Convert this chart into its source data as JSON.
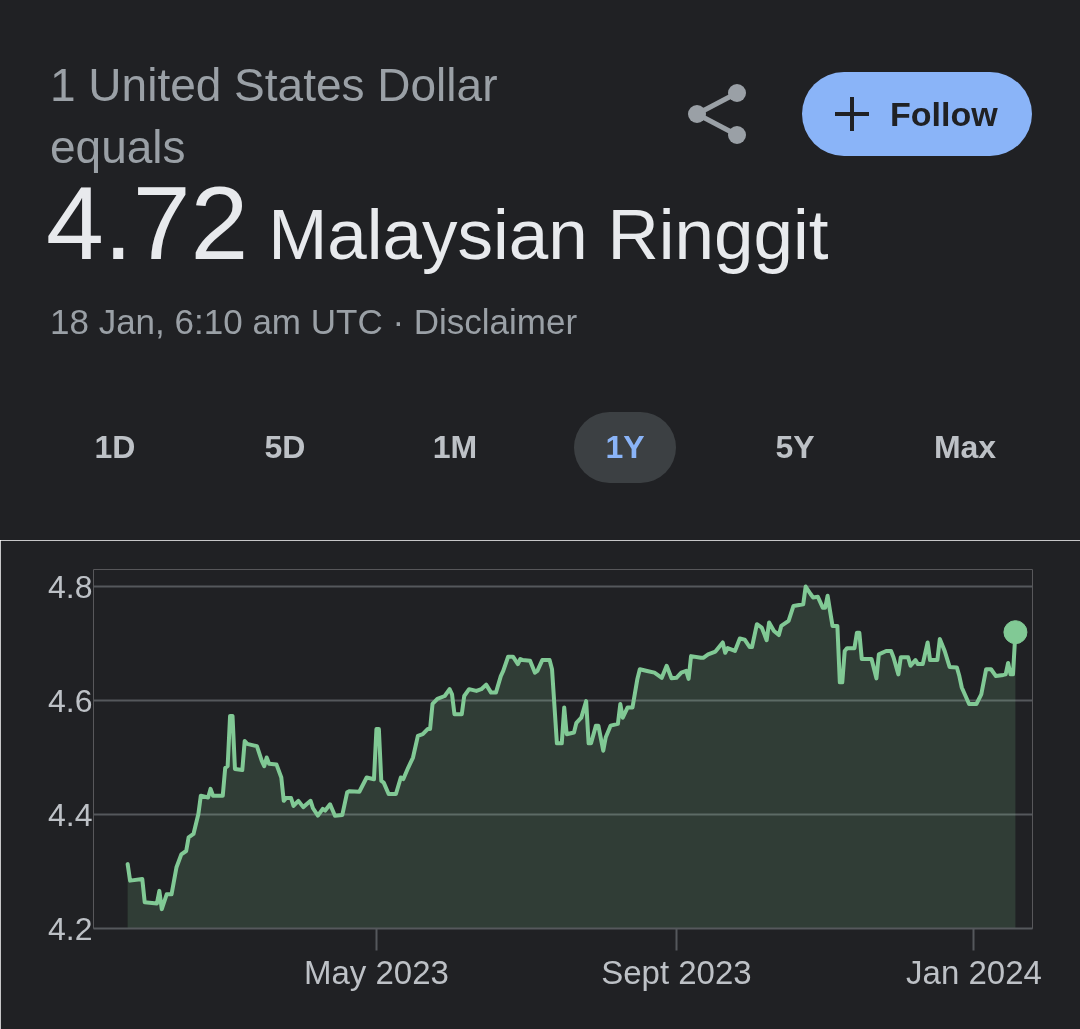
{
  "chart_data": {
    "type": "area",
    "title": "1 United States Dollar equals",
    "subtitle": "4.72 Malaysian Ringgit",
    "annotations": [
      "18 Jan, 6:10 am UTC · Disclaimer",
      "Follow",
      "1D",
      "5D",
      "1M",
      "1Y",
      "5Y",
      "Max"
    ],
    "x": [
      "2023-01-19",
      "2023-01-20",
      "2023-01-25",
      "2023-01-26",
      "2023-01-31",
      "2023-02-01",
      "2023-02-02",
      "2023-02-04",
      "2023-02-06",
      "2023-02-08",
      "2023-02-10",
      "2023-02-12",
      "2023-02-13",
      "2023-02-15",
      "2023-02-17",
      "2023-02-18",
      "2023-02-21",
      "2023-02-22",
      "2023-02-23",
      "2023-02-27",
      "2023-02-28",
      "2023-03-01",
      "2023-03-02",
      "2023-03-03",
      "2023-03-04",
      "2023-03-07",
      "2023-03-08",
      "2023-03-09",
      "2023-03-13",
      "2023-03-15",
      "2023-03-16",
      "2023-03-17",
      "2023-03-18",
      "2023-03-21",
      "2023-03-23",
      "2023-03-24",
      "2023-03-25",
      "2023-03-27",
      "2023-03-28",
      "2023-03-30",
      "2023-04-01",
      "2023-04-04",
      "2023-04-05",
      "2023-04-07",
      "2023-04-09",
      "2023-04-10",
      "2023-04-12",
      "2023-04-14",
      "2023-04-17",
      "2023-04-19",
      "2023-04-20",
      "2023-04-24",
      "2023-04-27",
      "2023-04-30",
      "2023-05-01",
      "2023-05-02",
      "2023-05-03",
      "2023-05-04",
      "2023-05-06",
      "2023-05-09",
      "2023-05-11",
      "2023-05-12",
      "2023-05-14",
      "2023-05-16",
      "2023-05-18",
      "2023-05-20",
      "2023-05-22",
      "2023-05-23",
      "2023-05-24",
      "2023-05-26",
      "2023-05-29",
      "2023-05-31",
      "2023-06-01",
      "2023-06-02",
      "2023-06-05",
      "2023-06-06",
      "2023-06-08",
      "2023-06-11",
      "2023-06-13",
      "2023-06-15",
      "2023-06-17",
      "2023-06-19",
      "2023-06-21",
      "2023-06-22",
      "2023-06-24",
      "2023-06-26",
      "2023-06-28",
      "2023-06-29",
      "2023-06-30",
      "2023-07-03",
      "2023-07-05",
      "2023-07-06",
      "2023-07-08",
      "2023-07-11",
      "2023-07-12",
      "2023-07-14",
      "2023-07-16",
      "2023-07-17",
      "2023-07-18",
      "2023-07-21",
      "2023-07-22",
      "2023-07-24",
      "2023-07-26",
      "2023-07-27",
      "2023-07-28",
      "2023-07-30",
      "2023-07-31",
      "2023-08-02",
      "2023-08-03",
      "2023-08-05",
      "2023-08-08",
      "2023-08-09",
      "2023-08-10",
      "2023-08-12",
      "2023-08-14",
      "2023-08-16",
      "2023-08-17",
      "2023-08-20",
      "2023-08-23",
      "2023-08-26",
      "2023-08-28",
      "2023-08-30",
      "2023-09-01",
      "2023-09-03",
      "2023-09-05",
      "2023-09-06",
      "2023-09-07",
      "2023-09-11",
      "2023-09-12",
      "2023-09-14",
      "2023-09-17",
      "2023-09-20",
      "2023-09-21",
      "2023-09-22",
      "2023-09-25",
      "2023-09-27",
      "2023-09-29",
      "2023-10-01",
      "2023-10-02",
      "2023-10-04",
      "2023-10-06",
      "2023-10-08",
      "2023-10-09",
      "2023-10-11",
      "2023-10-13",
      "2023-10-14",
      "2023-10-17",
      "2023-10-19",
      "2023-10-23",
      "2023-10-24",
      "2023-10-26",
      "2023-10-27",
      "2023-10-29",
      "2023-10-31",
      "2023-11-01",
      "2023-11-02",
      "2023-11-03",
      "2023-11-04",
      "2023-11-06",
      "2023-11-07",
      "2023-11-08",
      "2023-11-09",
      "2023-11-10",
      "2023-11-13",
      "2023-11-14",
      "2023-11-15",
      "2023-11-16",
      "2023-11-20",
      "2023-11-22",
      "2023-11-23",
      "2023-11-26",
      "2023-11-28",
      "2023-11-29",
      "2023-12-01",
      "2023-12-02",
      "2023-12-05",
      "2023-12-06",
      "2023-12-08",
      "2023-12-09",
      "2023-12-11",
      "2023-12-13",
      "2023-12-14",
      "2023-12-17",
      "2023-12-18",
      "2023-12-20",
      "2023-12-22",
      "2023-12-25",
      "2023-12-26",
      "2023-12-27",
      "2023-12-30",
      "2024-01-02",
      "2024-01-04",
      "2024-01-06",
      "2024-01-08",
      "2024-01-10",
      "2024-01-13",
      "2024-01-14",
      "2024-01-15",
      "2024-01-16",
      "2024-01-17",
      "2024-01-18"
    ],
    "series": [
      {
        "color": "#81c995",
        "values": [
          4.313,
          4.284,
          4.287,
          4.246,
          4.244,
          4.266,
          4.234,
          4.26,
          4.26,
          4.307,
          4.33,
          4.336,
          4.36,
          4.366,
          4.401,
          4.433,
          4.43,
          4.445,
          4.433,
          4.433,
          4.482,
          4.485,
          4.573,
          4.573,
          4.48,
          4.478,
          4.529,
          4.524,
          4.52,
          4.494,
          4.485,
          4.5,
          4.489,
          4.488,
          4.465,
          4.424,
          4.429,
          4.429,
          4.415,
          4.424,
          4.413,
          4.424,
          4.411,
          4.398,
          4.41,
          4.407,
          4.418,
          4.398,
          4.399,
          4.439,
          4.441,
          4.44,
          4.465,
          4.462,
          4.55,
          4.55,
          4.459,
          4.456,
          4.436,
          4.436,
          4.465,
          4.462,
          4.482,
          4.5,
          4.538,
          4.541,
          4.55,
          4.55,
          4.594,
          4.603,
          4.608,
          4.62,
          4.611,
          4.576,
          4.576,
          4.608,
          4.62,
          4.617,
          4.62,
          4.628,
          4.614,
          4.614,
          4.643,
          4.652,
          4.677,
          4.677,
          4.664,
          4.673,
          4.671,
          4.67,
          4.649,
          4.652,
          4.671,
          4.671,
          4.655,
          4.525,
          4.525,
          4.588,
          4.541,
          4.544,
          4.561,
          4.57,
          4.599,
          4.525,
          4.525,
          4.556,
          4.556,
          4.512,
          4.535,
          4.556,
          4.559,
          4.594,
          4.57,
          4.588,
          4.588,
          4.638,
          4.655,
          4.652,
          4.649,
          4.64,
          4.661,
          4.639,
          4.64,
          4.649,
          4.652,
          4.638,
          4.678,
          4.675,
          4.675,
          4.681,
          4.686,
          4.702,
          4.684,
          4.692,
          4.687,
          4.709,
          4.707,
          4.694,
          4.694,
          4.734,
          4.728,
          4.706,
          4.737,
          4.722,
          4.715,
          4.731,
          4.74,
          4.766,
          4.769,
          4.8,
          4.787,
          4.781,
          4.782,
          4.763,
          4.763,
          4.784,
          4.757,
          4.731,
          4.731,
          4.632,
          4.632,
          4.687,
          4.692,
          4.692,
          4.719,
          4.719,
          4.673,
          4.673,
          4.639,
          4.681,
          4.687,
          4.687,
          4.676,
          4.646,
          4.676,
          4.676,
          4.661,
          4.671,
          4.664,
          4.664,
          4.702,
          4.671,
          4.671,
          4.708,
          4.687,
          4.659,
          4.658,
          4.643,
          4.623,
          4.594,
          4.594,
          4.611,
          4.655,
          4.655,
          4.643,
          4.645,
          4.646,
          4.666,
          4.646,
          4.646,
          4.72
        ]
      },
      {
        "type": "scatter",
        "marker": "circle",
        "color": "#81c995",
        "x": [
          "2024-01-18"
        ],
        "values": [
          4.72
        ]
      }
    ],
    "xlim": [
      "2023-01-05",
      "2024-01-25"
    ],
    "ylim": [
      4.2,
      4.83
    ],
    "xticks": [
      {
        "value": "2023-05-01",
        "label": "May 2023"
      },
      {
        "value": "2023-09-01",
        "label": "Sept 2023"
      },
      {
        "value": "2024-01-01",
        "label": "Jan 2024"
      }
    ],
    "yticks": [
      4.2,
      4.4,
      4.6,
      4.8
    ],
    "grid": "y"
  }
}
